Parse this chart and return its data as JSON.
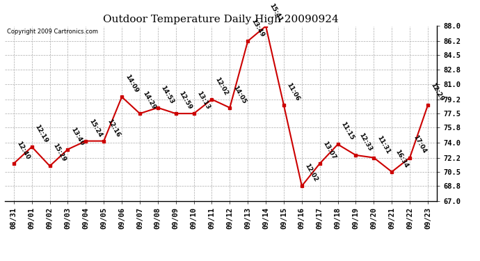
{
  "title": "Outdoor Temperature Daily High 20090924",
  "copyright": "Copyright 2009 Cartronics.com",
  "x_labels": [
    "08/31",
    "09/01",
    "09/02",
    "09/03",
    "09/04",
    "09/05",
    "09/06",
    "09/07",
    "09/08",
    "09/09",
    "09/10",
    "09/11",
    "09/12",
    "09/13",
    "09/14",
    "09/15",
    "09/16",
    "09/17",
    "09/18",
    "09/19",
    "09/20",
    "09/21",
    "09/22",
    "09/23"
  ],
  "y_values": [
    71.5,
    73.5,
    71.2,
    73.2,
    74.2,
    74.2,
    79.5,
    77.5,
    78.2,
    77.5,
    77.5,
    79.2,
    78.2,
    86.2,
    88.0,
    78.5,
    68.8,
    71.5,
    73.8,
    72.5,
    72.2,
    70.5,
    72.2,
    78.5
  ],
  "time_labels": [
    "12:40",
    "12:19",
    "15:29",
    "13:40",
    "15:24",
    "12:16",
    "14:09",
    "14:29",
    "14:53",
    "12:59",
    "13:13",
    "12:02",
    "14:05",
    "13:49",
    "15:41",
    "11:06",
    "12:02",
    "13:07",
    "11:15",
    "12:33",
    "11:31",
    "16:34",
    "17:04",
    "12:29"
  ],
  "y_min": 67.0,
  "y_max": 88.0,
  "y_ticks": [
    67.0,
    68.8,
    70.5,
    72.2,
    74.0,
    75.8,
    77.5,
    79.2,
    81.0,
    82.8,
    84.5,
    86.2,
    88.0
  ],
  "line_color": "#cc0000",
  "marker_color": "#cc0000",
  "bg_color": "#ffffff",
  "grid_color": "#aaaaaa",
  "title_fontsize": 11,
  "tick_fontsize": 7.5,
  "annotation_fontsize": 6.5
}
